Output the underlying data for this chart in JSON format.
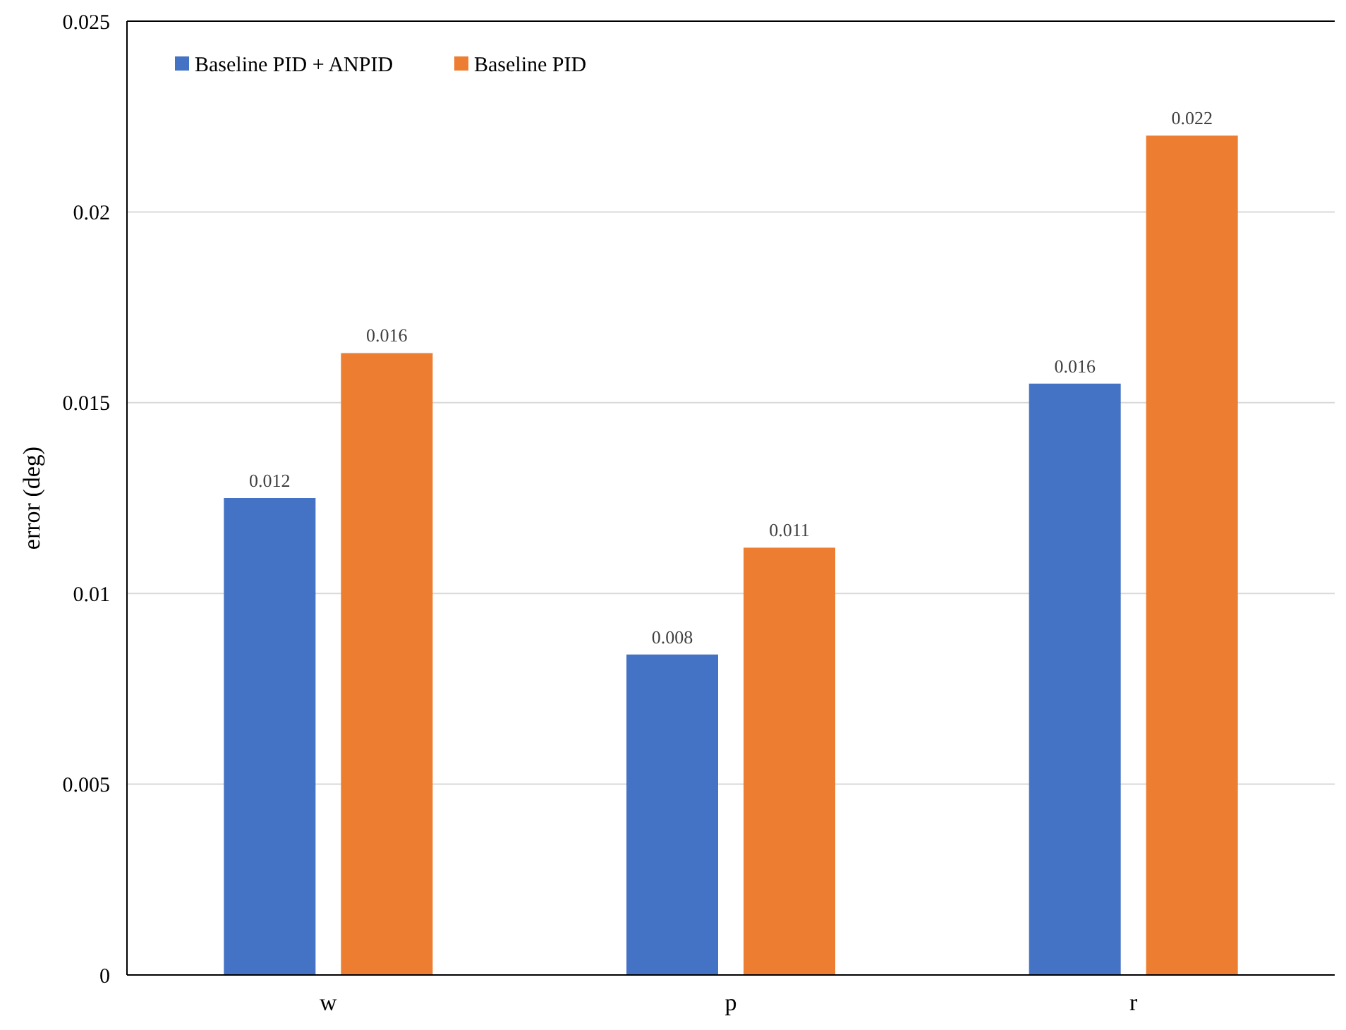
{
  "chart_data": {
    "type": "bar",
    "ylabel": "error (deg)",
    "categories": [
      "w",
      "p",
      "r"
    ],
    "series": [
      {
        "name": "Baseline PID + ANPID",
        "color": "#4472c4",
        "values": [
          0.0125,
          0.0084,
          0.0155
        ],
        "value_labels": [
          "0.012",
          "0.008",
          "0.016"
        ]
      },
      {
        "name": "Baseline PID",
        "color": "#ed7d31",
        "values": [
          0.0163,
          0.0112,
          0.022
        ],
        "value_labels": [
          "0.016",
          "0.011",
          "0.022"
        ]
      }
    ],
    "ylim": [
      0,
      0.025
    ],
    "yticks": [
      0,
      0.005,
      0.01,
      0.015,
      0.02,
      0.025
    ],
    "grid": "y",
    "legend": "top left"
  }
}
